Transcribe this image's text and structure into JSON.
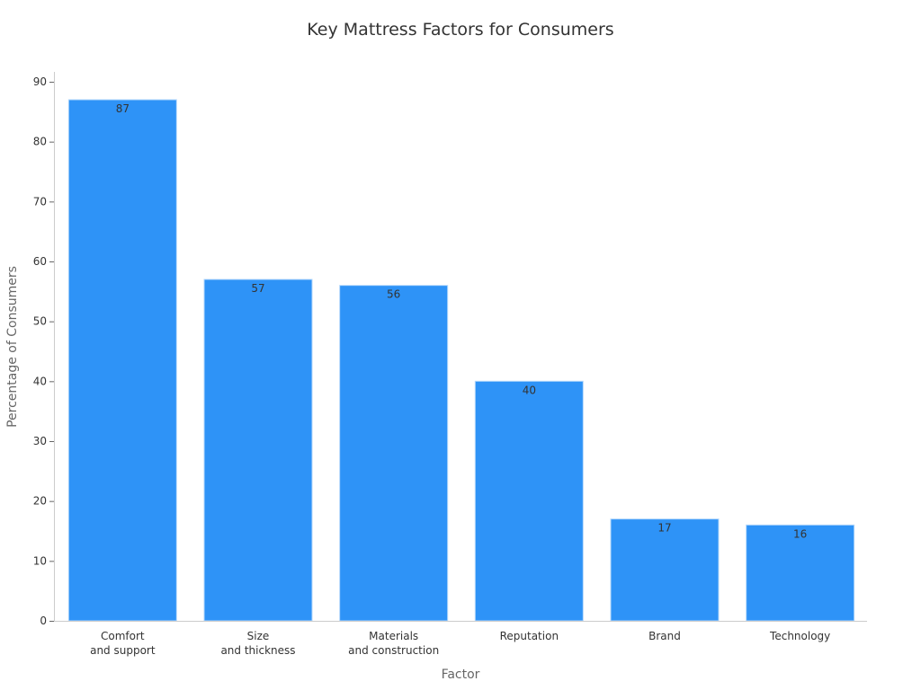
{
  "chart_data": {
    "type": "bar",
    "title": "Key Mattress Factors for Consumers",
    "xlabel": "Factor",
    "ylabel": "Percentage of Consumers",
    "categories": [
      [
        "Comfort",
        "and support"
      ],
      [
        "Size",
        "and thickness"
      ],
      [
        "Materials",
        "and construction"
      ],
      [
        "Reputation"
      ],
      [
        "Brand"
      ],
      [
        "Technology"
      ]
    ],
    "values": [
      87,
      57,
      56,
      40,
      17,
      16
    ],
    "ylim": [
      0,
      90
    ],
    "yticks": [
      0,
      10,
      20,
      30,
      40,
      50,
      60,
      70,
      80,
      90
    ],
    "grid": false,
    "bar_color": "#2E93F7",
    "bar_edge_color": "#B3D7FB"
  }
}
